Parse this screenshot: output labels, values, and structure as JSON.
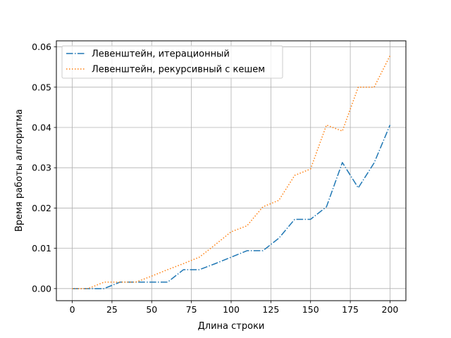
{
  "chart_data": {
    "type": "line",
    "xlabel": "Длина строки",
    "ylabel": "Время работы алгоритма",
    "xlim": [
      -10,
      210
    ],
    "ylim": [
      -0.003,
      0.0615
    ],
    "xticks": [
      0,
      25,
      50,
      75,
      100,
      125,
      150,
      175,
      200
    ],
    "xtick_labels": [
      "0",
      "25",
      "50",
      "75",
      "100",
      "125",
      "150",
      "175",
      "200"
    ],
    "yticks": [
      0.0,
      0.01,
      0.02,
      0.03,
      0.04,
      0.05,
      0.06
    ],
    "ytick_labels": [
      "0.00",
      "0.01",
      "0.02",
      "0.03",
      "0.04",
      "0.05",
      "0.06"
    ],
    "grid": true,
    "legend_position": "top-left",
    "x": [
      0,
      10,
      20,
      30,
      40,
      50,
      60,
      70,
      80,
      90,
      100,
      110,
      120,
      130,
      140,
      150,
      160,
      170,
      180,
      190,
      200
    ],
    "series": [
      {
        "name": "Левенштейн, итерационный",
        "color": "#1f77b4",
        "style": "dashdot",
        "values": [
          0.0,
          0.0,
          0.0,
          0.0016,
          0.0016,
          0.0016,
          0.0016,
          0.0047,
          0.0047,
          0.0062,
          0.0078,
          0.0094,
          0.0094,
          0.0125,
          0.0172,
          0.0172,
          0.0203,
          0.0313,
          0.025,
          0.0312,
          0.0406
        ]
      },
      {
        "name": "Левенштейн, рекурсивный с кешем",
        "color": "#ff7f0e",
        "style": "dotted",
        "values": [
          0.0,
          0.0,
          0.0016,
          0.0016,
          0.0016,
          0.0031,
          0.0047,
          0.0062,
          0.0078,
          0.0109,
          0.0141,
          0.0156,
          0.0203,
          0.0219,
          0.0281,
          0.0297,
          0.0406,
          0.0391,
          0.05,
          0.05,
          0.0578
        ]
      }
    ]
  }
}
